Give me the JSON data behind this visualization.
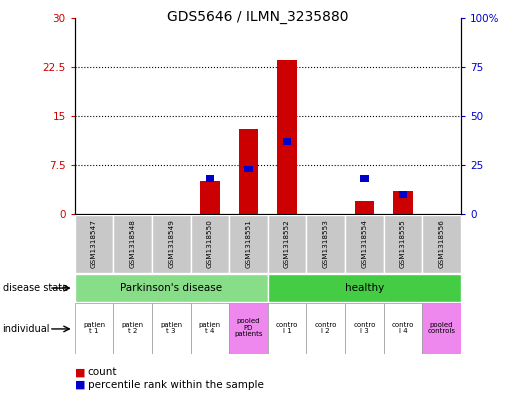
{
  "title": "GDS5646 / ILMN_3235880",
  "samples": [
    "GSM1318547",
    "GSM1318548",
    "GSM1318549",
    "GSM1318550",
    "GSM1318551",
    "GSM1318552",
    "GSM1318553",
    "GSM1318554",
    "GSM1318555",
    "GSM1318556"
  ],
  "count_values": [
    0,
    0,
    0,
    5,
    13,
    23.5,
    0,
    2,
    3.5,
    0
  ],
  "percentile_values_pct": [
    0,
    0,
    0,
    18,
    23,
    37,
    0,
    18,
    10,
    0
  ],
  "ylim_left": [
    0,
    30
  ],
  "ylim_right": [
    0,
    100
  ],
  "yticks_left": [
    0,
    7.5,
    15,
    22.5,
    30
  ],
  "ytick_labels_left": [
    "0",
    "7.5",
    "15",
    "22.5",
    "30"
  ],
  "yticks_right": [
    0,
    25,
    50,
    75,
    100
  ],
  "ytick_labels_right": [
    "0",
    "25",
    "50",
    "75",
    "100%"
  ],
  "bar_color": "#cc0000",
  "percentile_color": "#0000cc",
  "gsm_bg_color": "#c8c8c8",
  "pd_bg_color": "#88dd88",
  "healthy_bg_color": "#44cc44",
  "individual_colors": [
    "#ffffff",
    "#ffffff",
    "#ffffff",
    "#ffffff",
    "#ee88ee",
    "#ffffff",
    "#ffffff",
    "#ffffff",
    "#ffffff",
    "#ee88ee"
  ],
  "left_axis_color": "#cc0000",
  "right_axis_color": "#0000cc",
  "individual_labels": [
    "patien\nt 1",
    "patien\nt 2",
    "patien\nt 3",
    "patien\nt 4",
    "pooled\nPD\npatients",
    "contro\nl 1",
    "contro\nl 2",
    "contro\nl 3",
    "contro\nl 4",
    "pooled\ncontrols"
  ]
}
